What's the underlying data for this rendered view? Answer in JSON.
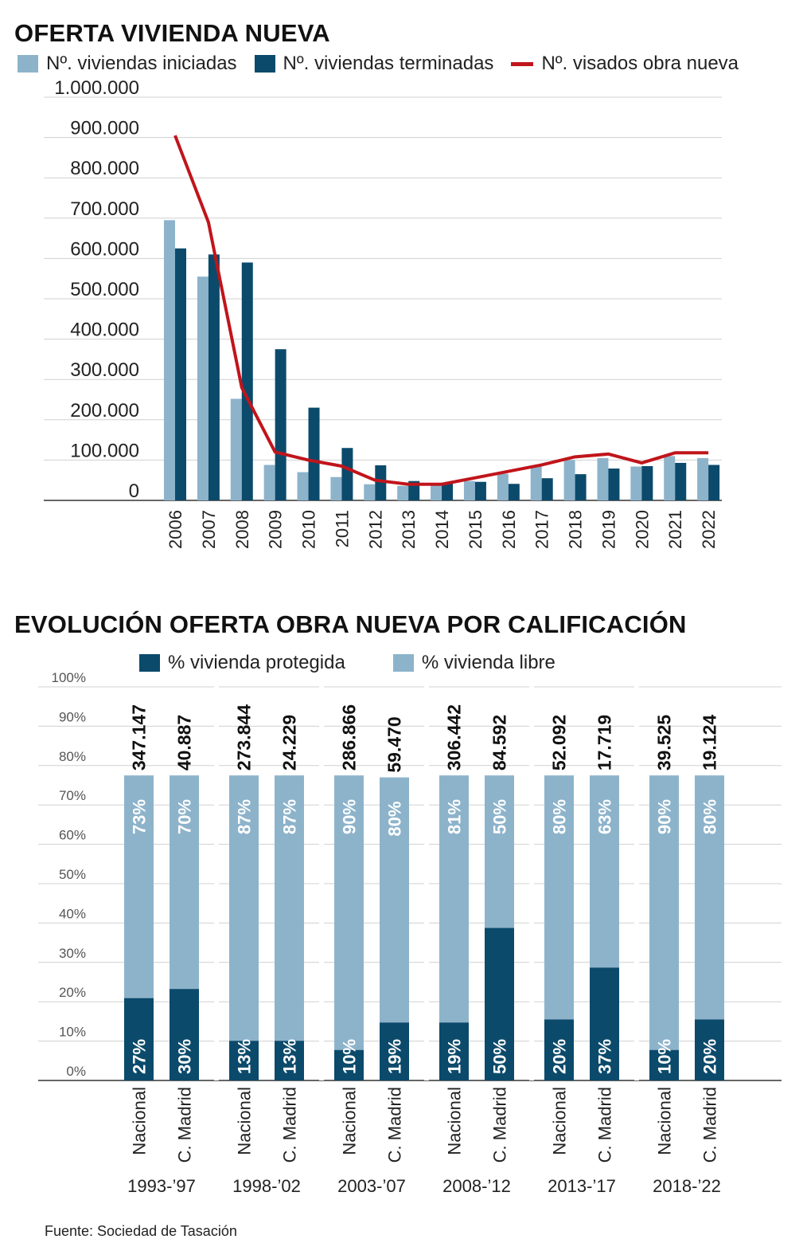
{
  "colors": {
    "light": "#8db3cb",
    "dark": "#0b4a6b",
    "line": "#c0151b",
    "grid": "#d0d0d0"
  },
  "chart1": {
    "title": "OFERTA VIVIENDA NUEVA",
    "legend": [
      "Nº. viviendas iniciadas",
      "Nº. viviendas terminadas",
      "Nº. visados obra nueva"
    ]
  },
  "chart2": {
    "title": "EVOLUCIÓN OFERTA OBRA NUEVA POR CALIFICACIÓN",
    "legend": [
      "% vivienda protegida",
      "% vivienda libre"
    ]
  },
  "source": "Fuente: Sociedad de Tasación",
  "chart_data": [
    {
      "type": "bar",
      "title": "OFERTA VIVIENDA NUEVA",
      "categories": [
        "2006",
        "2007",
        "2008",
        "2009",
        "2010",
        "2011",
        "2012",
        "2013",
        "2014",
        "2015",
        "2016",
        "2017",
        "2018",
        "2019",
        "2020",
        "2021",
        "2022"
      ],
      "series": [
        {
          "name": "Nº. viviendas iniciadas",
          "type": "bar",
          "values": [
            695000,
            555000,
            252000,
            88000,
            70000,
            58000,
            40000,
            36000,
            38000,
            48000,
            66000,
            84000,
            100000,
            105000,
            84000,
            110000,
            105000
          ]
        },
        {
          "name": "Nº. viviendas terminadas",
          "type": "bar",
          "values": [
            625000,
            610000,
            590000,
            375000,
            230000,
            130000,
            87000,
            48000,
            44000,
            46000,
            41000,
            55000,
            65000,
            79000,
            85000,
            93000,
            88000
          ]
        },
        {
          "name": "Nº. visados obra nueva",
          "type": "line",
          "values": [
            905000,
            690000,
            280000,
            120000,
            100000,
            85000,
            50000,
            40000,
            40000,
            56000,
            72000,
            88000,
            108000,
            115000,
            93000,
            118000,
            118000
          ]
        }
      ],
      "yticks": [
        "0",
        "100.000",
        "200.000",
        "300.000",
        "400.000",
        "500.000",
        "600.000",
        "700.000",
        "800.000",
        "900.000",
        "1.000.000"
      ],
      "ylim": [
        0,
        1000000
      ],
      "grid": true,
      "legend_position": "top"
    },
    {
      "type": "bar",
      "title": "EVOLUCIÓN OFERTA OBRA NUEVA POR CALIFICACIÓN",
      "stacked": true,
      "yticks": [
        "0%",
        "10%",
        "20%",
        "30%",
        "40%",
        "50%",
        "60%",
        "70%",
        "80%",
        "90%",
        "100%"
      ],
      "ylim": [
        0,
        100
      ],
      "grid": true,
      "legend_position": "top",
      "groups": [
        {
          "period": "1993-’97",
          "bars": [
            {
              "label": "Nacional",
              "total": "347.147",
              "protegida": 27,
              "libre": 73,
              "protegida_label": "27%",
              "libre_label": "73%"
            },
            {
              "label": "C. Madrid",
              "total": "40.887",
              "protegida": 30,
              "libre": 70,
              "protegida_label": "30%",
              "libre_label": "70%"
            }
          ]
        },
        {
          "period": "1998-’02",
          "bars": [
            {
              "label": "Nacional",
              "total": "273.844",
              "protegida": 13,
              "libre": 87,
              "protegida_label": "13%",
              "libre_label": "87%"
            },
            {
              "label": "C. Madrid",
              "total": "24.229",
              "protegida": 13,
              "libre": 87,
              "protegida_label": "13%",
              "libre_label": "87%"
            }
          ]
        },
        {
          "period": "2003-’07",
          "bars": [
            {
              "label": "Nacional",
              "total": "286.866",
              "protegida": 10,
              "libre": 90,
              "protegida_label": "10%",
              "libre_label": "90%"
            },
            {
              "label": "C. Madrid",
              "total": "59.470",
              "protegida": 19,
              "libre": 80,
              "protegida_label": "19%",
              "libre_label": "80%"
            }
          ]
        },
        {
          "period": "2008-’12",
          "bars": [
            {
              "label": "Nacional",
              "total": "306.442",
              "protegida": 19,
              "libre": 81,
              "protegida_label": "19%",
              "libre_label": "81%"
            },
            {
              "label": "C. Madrid",
              "total": "84.592",
              "protegida": 50,
              "libre": 50,
              "protegida_label": "50%",
              "libre_label": "50%"
            }
          ]
        },
        {
          "period": "2013-’17",
          "bars": [
            {
              "label": "Nacional",
              "total": "52.092",
              "protegida": 20,
              "libre": 80,
              "protegida_label": "20%",
              "libre_label": "80%"
            },
            {
              "label": "C. Madrid",
              "total": "17.719",
              "protegida": 37,
              "libre": 63,
              "protegida_label": "37%",
              "libre_label": "63%"
            }
          ]
        },
        {
          "period": "2018-’22",
          "bars": [
            {
              "label": "Nacional",
              "total": "39.525",
              "protegida": 10,
              "libre": 90,
              "protegida_label": "10%",
              "libre_label": "90%"
            },
            {
              "label": "C. Madrid",
              "total": "19.124",
              "protegida": 20,
              "libre": 80,
              "protegida_label": "20%",
              "libre_label": "80%"
            }
          ]
        }
      ]
    }
  ]
}
